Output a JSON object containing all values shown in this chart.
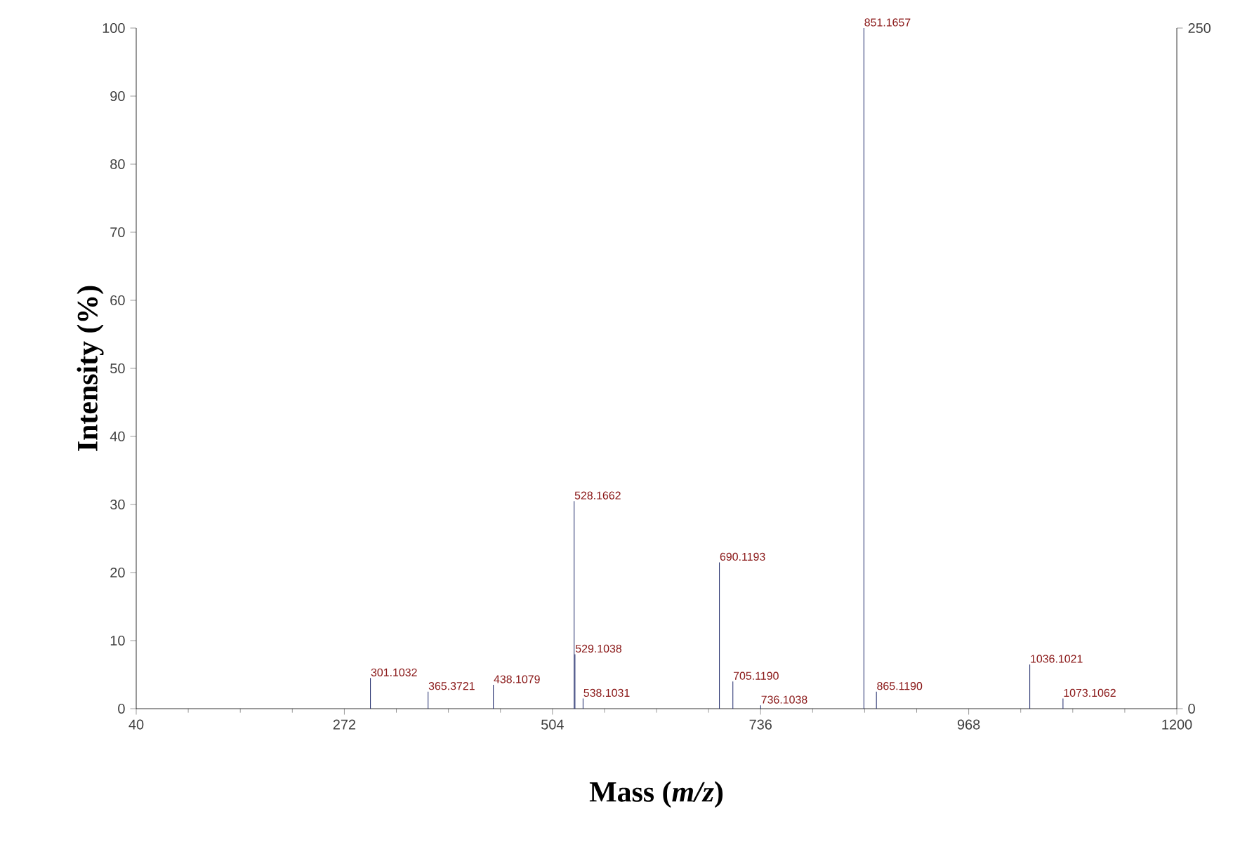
{
  "chart_data": {
    "type": "bar",
    "xlabel": "Mass (*m/z*)",
    "ylabel": "Intensity (%)",
    "x": [
      301.1032,
      365.3721,
      438.1079,
      528.1662,
      529.1038,
      538.1031,
      690.1193,
      705.119,
      736.1038,
      851.1657,
      865.119,
      1036.1021,
      1073.1062
    ],
    "values": [
      4.5,
      2.5,
      3.5,
      30.5,
      8,
      1.5,
      21.5,
      4,
      0.5,
      100,
      2.5,
      6.5,
      1.5
    ],
    "color": "#1f2a6b",
    "xlim": [
      40,
      1200
    ],
    "xticks": [
      40,
      272,
      504,
      736,
      968,
      1200
    ],
    "ylim": [
      0,
      100
    ],
    "yticks": [
      0,
      10,
      20,
      30,
      40,
      50,
      60,
      70,
      80,
      90,
      100
    ],
    "y2lim": [
      0,
      250
    ],
    "y2ticks": [
      0,
      250
    ],
    "annotations": [
      {
        "text": "301.1032",
        "x": 301.1032,
        "y": 4.5
      },
      {
        "text": "365.3721",
        "x": 365.3721,
        "y": 2.5
      },
      {
        "text": "438.1079",
        "x": 438.1079,
        "y": 3.5
      },
      {
        "text": "528.1662",
        "x": 528.1662,
        "y": 30.5
      },
      {
        "text": "529.1038",
        "x": 529.1038,
        "y": 8
      },
      {
        "text": "538.1031",
        "x": 538.1031,
        "y": 1.5
      },
      {
        "text": "690.1193",
        "x": 690.1193,
        "y": 21.5
      },
      {
        "text": "705.1190",
        "x": 705.119,
        "y": 4
      },
      {
        "text": "736.1038",
        "x": 736.1038,
        "y": 0.5
      },
      {
        "text": "851.1657",
        "x": 851.1657,
        "y": 100
      },
      {
        "text": "865.1190",
        "x": 865.119,
        "y": 2.5
      },
      {
        "text": "1036.1021",
        "x": 1036.1021,
        "y": 6.5
      },
      {
        "text": "1073.1062",
        "x": 1073.1062,
        "y": 1.5
      }
    ],
    "grid": false
  }
}
